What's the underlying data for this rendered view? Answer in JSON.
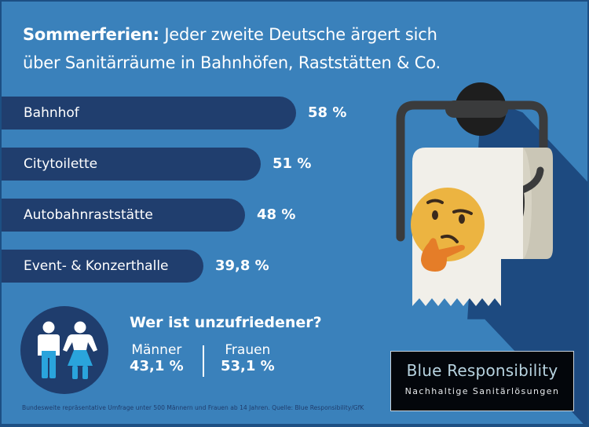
{
  "title": {
    "bold": "Sommerferien:",
    "rest_line1": " Jeder zweite Deutsche ärgert sich",
    "line2": "über Sanitärräume in Bahnhöfen, Raststätten & Co."
  },
  "chart_data": {
    "type": "bar",
    "orientation": "horizontal",
    "title": "Sommerferien: Jeder zweite Deutsche ärgert sich über Sanitärräume in Bahnhöfen, Raststätten & Co.",
    "categories": [
      "Bahnhof",
      "Citytoilette",
      "Autobahnraststätte",
      "Event- & Konzerthalle"
    ],
    "values": [
      58,
      51,
      48,
      39.8
    ],
    "value_labels": [
      "58 %",
      "51 %",
      "48 %",
      "39,8 %"
    ],
    "unit": "%",
    "xlabel": "",
    "ylabel": "",
    "grid": false,
    "bar_color": "#203e6e"
  },
  "gender": {
    "question": "Wer ist unzufriedener?",
    "items": [
      {
        "label": "Männer",
        "value": "43,1 %"
      },
      {
        "label": "Frauen",
        "value": "53,1 %"
      }
    ]
  },
  "footnote": "Bundesweite repräsentative Umfrage unter 500 Männern und Frauen ab 14 Jahren. Quelle: Blue Responsibility/GfK",
  "brand": {
    "name": "Blue Responsibility",
    "tagline": "Nachhaltige Sanitärlösungen"
  },
  "illustration": {
    "subject": "toilet-paper-roll-with-thinking-face-emoji"
  },
  "colors": {
    "background": "#3a81bb",
    "dark_blue": "#203e6e",
    "shadow": "#1d4a80",
    "paper": "#f1efe9",
    "emoji": "#ecb441"
  }
}
